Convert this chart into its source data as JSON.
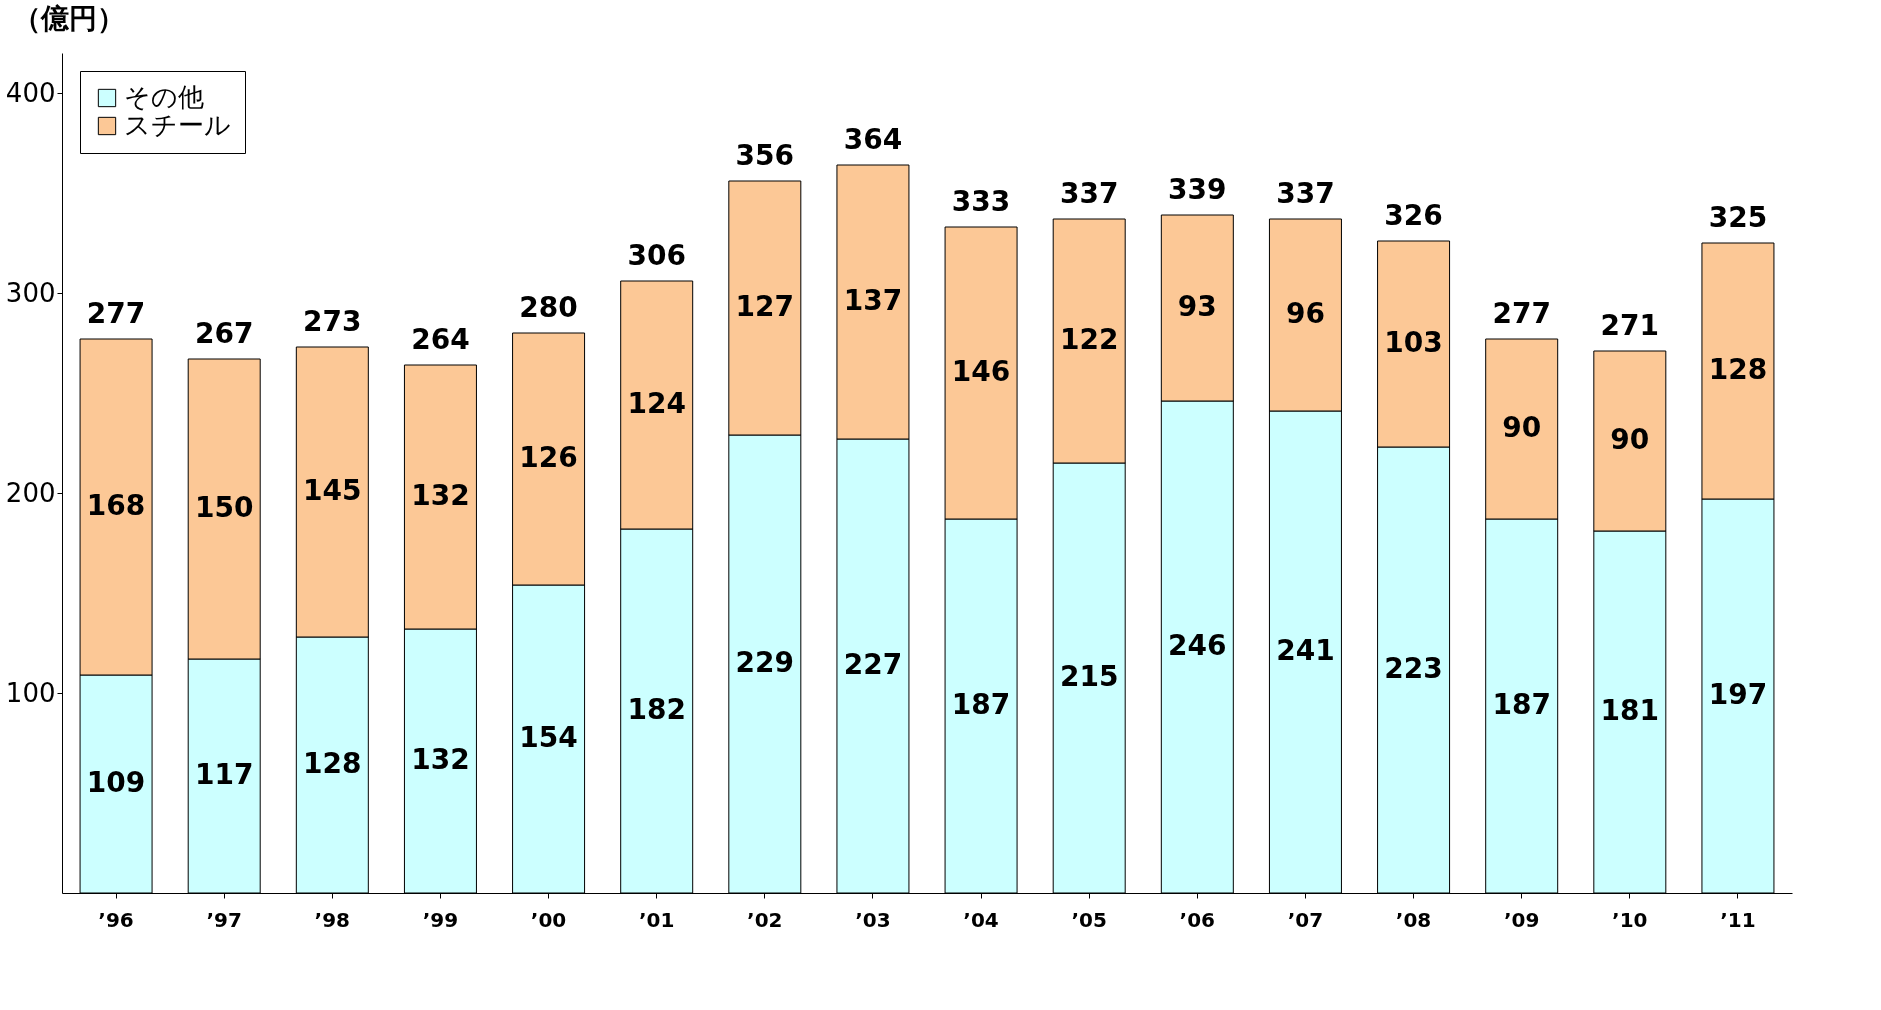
{
  "chart_data": {
    "type": "bar",
    "stacked": true,
    "ylabel": "（億円）",
    "categories": [
      "’96",
      "’97",
      "’98",
      "’99",
      "’00",
      "’01",
      "’02",
      "’03",
      "’04",
      "’05",
      "’06",
      "’07",
      "’08",
      "’09",
      "’10",
      "’11"
    ],
    "series": [
      {
        "name": "その他",
        "color": "#ccffff",
        "values": [
          109,
          117,
          128,
          132,
          154,
          182,
          229,
          227,
          187,
          215,
          246,
          241,
          223,
          187,
          181,
          197
        ]
      },
      {
        "name": "スチール",
        "color": "#fcc896",
        "values": [
          168,
          150,
          145,
          132,
          126,
          124,
          127,
          137,
          146,
          122,
          93,
          96,
          103,
          90,
          90,
          128
        ]
      }
    ],
    "totals": [
      "277",
      "267",
      "273",
      "264",
      "280",
      "306",
      "356",
      "364",
      "333",
      "337",
      "339",
      "337",
      "326",
      "277",
      "271",
      "325"
    ],
    "data_labels": true,
    "ylim": [
      0,
      420
    ],
    "yticks": [
      100,
      200,
      300,
      400
    ],
    "grid": false,
    "legend": "top left"
  }
}
